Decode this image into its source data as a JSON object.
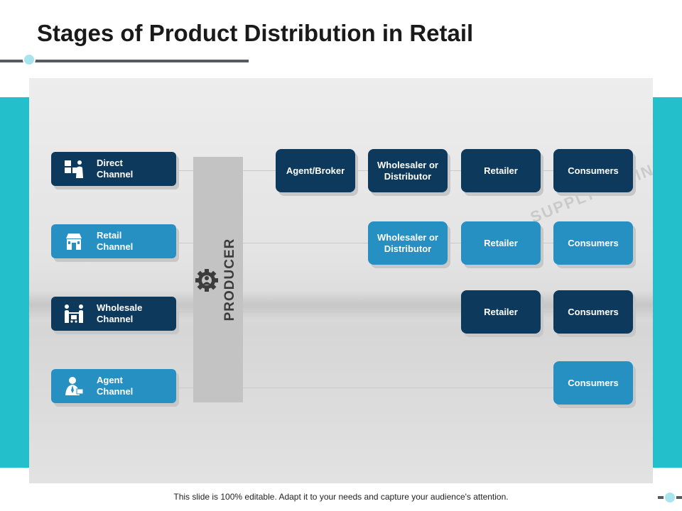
{
  "title": "Stages of Product Distribution in Retail",
  "watermark": "SUPPLY CHAIN",
  "producer": {
    "label": "PRODUCER",
    "icon": "gear-person-icon"
  },
  "channels": [
    {
      "label_line1": "Direct",
      "label_line2": "Channel",
      "icon": "boxes-person-icon",
      "style": "dark"
    },
    {
      "label_line1": "Retail",
      "label_line2": "Channel",
      "icon": "store-icon",
      "style": "light"
    },
    {
      "label_line1": "Wholesale",
      "label_line2": "Channel",
      "icon": "handover-cart-icon",
      "style": "dark"
    },
    {
      "label_line1": "Agent",
      "label_line2": "Channel",
      "icon": "agent-person-icon",
      "style": "light"
    }
  ],
  "rows": [
    {
      "nodes": [
        {
          "label": "Agent/Broker"
        },
        {
          "label": "Wholesaler or Distributor"
        },
        {
          "label": "Retailer"
        },
        {
          "label": "Consumers"
        }
      ]
    },
    {
      "nodes": [
        {
          "label": "Wholesaler or Distributor"
        },
        {
          "label": "Retailer"
        },
        {
          "label": "Consumers"
        }
      ]
    },
    {
      "nodes": [
        {
          "label": "Retailer"
        },
        {
          "label": "Consumers"
        }
      ]
    },
    {
      "nodes": [
        {
          "label": "Consumers"
        }
      ]
    }
  ],
  "footer": "This slide is 100% editable. Adapt it to your needs and capture your audience's attention.",
  "colors": {
    "dark": "#0d3a5c",
    "light": "#2690c2",
    "teal": "#23bfcb",
    "producer_bar": "#c3c3c3"
  }
}
